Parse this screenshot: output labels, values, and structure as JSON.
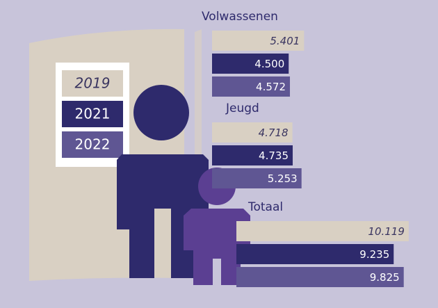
{
  "chart_data": {
    "type": "bar",
    "orientation": "horizontal",
    "categories": [
      "Volwassenen",
      "Jeugd",
      "Totaal"
    ],
    "series": [
      {
        "name": "2019",
        "color": "#d9d0c3",
        "values": [
          5401,
          4718,
          10119
        ],
        "value_labels": [
          "5.401",
          "4.718",
          "10.119"
        ]
      },
      {
        "name": "2021",
        "color": "#2e2a6c",
        "values": [
          4500,
          4735,
          9235
        ],
        "value_labels": [
          "4.500",
          "4.735",
          "9.235"
        ]
      },
      {
        "name": "2022",
        "color": "#5f5693",
        "values": [
          4572,
          5253,
          9825
        ],
        "value_labels": [
          "4.572",
          "5.253",
          "9.825"
        ]
      }
    ]
  }
}
